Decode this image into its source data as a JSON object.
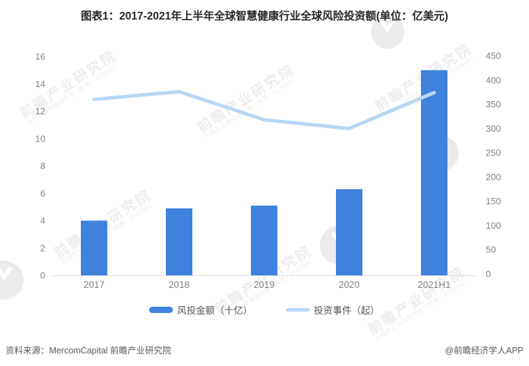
{
  "title": "图表1：2017-2021年上半年全球智慧健康行业全球风险投资额(单位：亿美元)",
  "chart_data": {
    "type": "bar",
    "categories": [
      "2017",
      "2018",
      "2019",
      "2020",
      "2021H1"
    ],
    "series": [
      {
        "name": "风投金额（十亿）",
        "type": "bar",
        "axis": "left",
        "color": "#3f82dd",
        "values": [
          4.0,
          4.9,
          5.1,
          6.3,
          15.0
        ]
      },
      {
        "name": "投资事件（起）",
        "type": "line",
        "axis": "right",
        "color": "#b7d7f4",
        "values": [
          360,
          376,
          318,
          300,
          374
        ]
      }
    ],
    "left_axis": {
      "min": 0,
      "max": 16,
      "step": 2,
      "ticks": [
        0,
        2,
        4,
        6,
        8,
        10,
        12,
        14,
        16
      ]
    },
    "right_axis": {
      "min": 0,
      "max": 450,
      "step": 50,
      "ticks": [
        0,
        50,
        100,
        150,
        200,
        250,
        300,
        350,
        400,
        450
      ]
    },
    "grid": false,
    "legend_position": "bottom",
    "title": "图表1：2017-2021年上半年全球智慧健康行业全球风险投资额(单位：亿美元)",
    "xlabel": "",
    "ylabel_left": "风投金额（十亿）",
    "ylabel_right": "投资事件（起）"
  },
  "legend": {
    "items": [
      {
        "label": "风投金额（十亿）",
        "swatch": "bar",
        "color": "#3f82dd"
      },
      {
        "label": "投资事件（起）",
        "swatch": "line",
        "color": "#b7d7f4"
      }
    ]
  },
  "footer": {
    "source": "资料来源：MercomCapital 前瞻产业研究院",
    "credit": "@前瞻经济学人APP"
  },
  "watermark": {
    "text": "前瞻产业研究院",
    "subtext": "中国产业咨询领导者（股票：839599）"
  },
  "colors": {
    "bar": "#3f82dd",
    "line": "#b7d7f4",
    "axis_text": "#808080",
    "title_text": "#262626",
    "footer_text": "#595959",
    "baseline": "#e2e2e2",
    "watermark": "#8c8c8c"
  }
}
